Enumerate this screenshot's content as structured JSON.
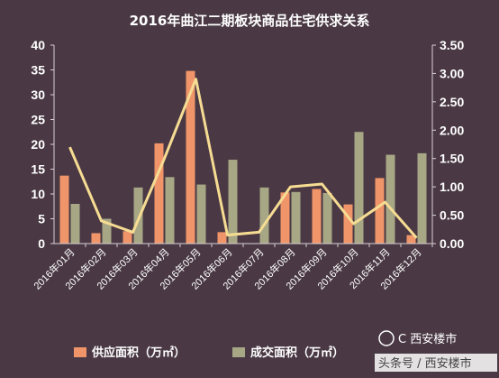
{
  "chart_data": {
    "type": "bar",
    "title": "2016年曲江二期板块商品住宅供求关系",
    "categories": [
      "2016年01月",
      "2016年02月",
      "2016年03月",
      "2016年04月",
      "2016年05月",
      "2016年06月",
      "2016年07月",
      "2016年08月",
      "2016年09月",
      "2016年10月",
      "2016年11月",
      "2016年12月"
    ],
    "series": [
      {
        "name": "供应面积（万㎡）",
        "kind": "bar",
        "axis": "left",
        "color": "#f0956a",
        "values": [
          13.7,
          2.1,
          2.5,
          20.2,
          34.8,
          2.3,
          0.0,
          10.3,
          11.0,
          7.9,
          13.2,
          1.7
        ]
      },
      {
        "name": "成交面积（万㎡）",
        "kind": "bar",
        "axis": "left",
        "color": "#a7a785",
        "values": [
          8.0,
          5.0,
          11.3,
          13.4,
          11.9,
          16.9,
          11.3,
          10.4,
          10.2,
          22.5,
          17.9,
          18.2
        ]
      },
      {
        "name": "",
        "kind": "line",
        "axis": "right",
        "color": "#f6dc93",
        "values": [
          1.7,
          0.4,
          0.2,
          1.5,
          2.9,
          0.15,
          0.2,
          1.0,
          1.05,
          0.35,
          0.73,
          0.1
        ]
      }
    ],
    "y_left": {
      "min": 0,
      "max": 40,
      "ticks": [
        "0",
        "5",
        "10",
        "15",
        "20",
        "25",
        "30",
        "35",
        "40"
      ]
    },
    "y_right": {
      "min": 0,
      "max": 3.5,
      "ticks": [
        "0.00",
        "0.50",
        "1.00",
        "1.50",
        "2.00",
        "2.50",
        "3.00",
        "3.50"
      ]
    },
    "grid": false,
    "legend_position": "bottom"
  },
  "watermark": {
    "line1": "C 西安楼市",
    "line2": "头条号 / 西安楼市"
  },
  "colors": {
    "background": "#4a3944",
    "axis": "#d8d0d4"
  }
}
